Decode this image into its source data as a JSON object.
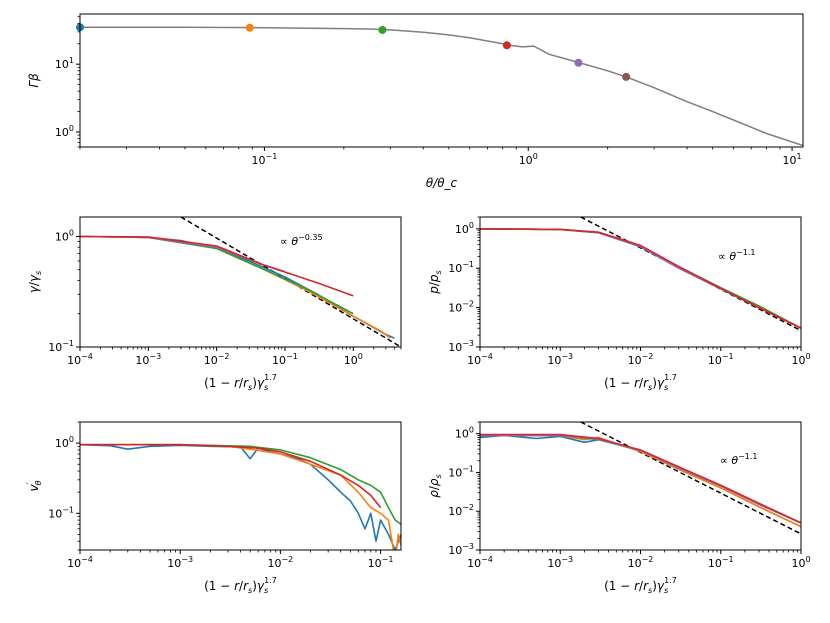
{
  "chart_data": [
    {
      "type": "line",
      "xscale": "log",
      "yscale": "log",
      "xlim": [
        0.02,
        11
      ],
      "ylim": [
        0.6,
        55
      ],
      "xlabel": "θ/θ_c",
      "ylabel": "Γβ",
      "xticks": [
        {
          "v": 0.1,
          "b": "10",
          "e": "−1"
        },
        {
          "v": 1,
          "b": "10",
          "e": "0"
        },
        {
          "v": 10,
          "b": "10",
          "e": "1"
        }
      ],
      "yticks": [
        {
          "v": 1,
          "b": "10",
          "e": "0"
        },
        {
          "v": 10,
          "b": "10",
          "e": "1"
        }
      ],
      "series": [
        {
          "color": "#7f7f7f",
          "x": [
            0.02,
            0.05,
            0.1,
            0.15,
            0.2,
            0.25,
            0.3,
            0.4,
            0.5,
            0.6,
            0.7,
            0.8,
            0.85,
            0.95,
            1.05,
            1.2,
            1.5,
            2,
            2.4,
            3,
            4,
            5,
            6,
            8,
            11
          ],
          "y": [
            35,
            35,
            34.5,
            34,
            33.5,
            33,
            32,
            29.5,
            27,
            24.5,
            22,
            20,
            19,
            18,
            18.5,
            14,
            11,
            8,
            6.3,
            4.5,
            2.8,
            2,
            1.5,
            0.95,
            0.63
          ]
        }
      ],
      "markers": [
        {
          "x": 0.02,
          "y": 35,
          "color": "#1f77b4"
        },
        {
          "x": 0.088,
          "y": 34.5,
          "color": "#ff7f0e"
        },
        {
          "x": 0.28,
          "y": 32,
          "color": "#2ca02c"
        },
        {
          "x": 0.83,
          "y": 19,
          "color": "#d62728"
        },
        {
          "x": 1.55,
          "y": 10.5,
          "color": "#9467bd"
        },
        {
          "x": 2.35,
          "y": 6.5,
          "color": "#8c564b"
        }
      ]
    },
    {
      "type": "line",
      "xscale": "log",
      "yscale": "log",
      "xlim": [
        0.0001,
        5
      ],
      "ylim": [
        0.1,
        1.5
      ],
      "xlabel_parts": [
        "(1 − ",
        "r",
        "/",
        "r",
        "s",
        ")",
        "γ",
        "s",
        "1.7"
      ],
      "ylabel_parts": [
        "γ",
        "/",
        "γ",
        "s"
      ],
      "annotation": {
        "pre": "∝ ",
        "sym": "θ",
        "exp": "−0.35"
      },
      "xticks": [
        {
          "v": 0.0001,
          "b": "10",
          "e": "−4"
        },
        {
          "v": 0.001,
          "b": "10",
          "e": "−3"
        },
        {
          "v": 0.01,
          "b": "10",
          "e": "−2"
        },
        {
          "v": 0.1,
          "b": "10",
          "e": "−1"
        },
        {
          "v": 1,
          "b": "10",
          "e": "0"
        }
      ],
      "yticks": [
        {
          "v": 0.1,
          "b": "10",
          "e": "−1"
        },
        {
          "v": 1,
          "b": "10",
          "e": "0"
        }
      ],
      "powerlaw": {
        "slope": -0.35,
        "x": [
          0.003,
          5
        ],
        "y": [
          1.5,
          0.1
        ]
      },
      "series": [
        {
          "color": "#1f77b4",
          "x": [
            0.0001,
            0.001,
            0.003,
            0.01,
            0.03,
            0.1,
            0.3,
            1,
            3,
            4
          ],
          "y": [
            1,
            0.98,
            0.92,
            0.78,
            0.6,
            0.43,
            0.3,
            0.19,
            0.13,
            0.12
          ]
        },
        {
          "color": "#ff7f0e",
          "x": [
            0.0001,
            0.001,
            0.01,
            0.05,
            0.2,
            1,
            2.5,
            3.5
          ],
          "y": [
            1,
            0.98,
            0.78,
            0.5,
            0.33,
            0.19,
            0.14,
            0.12
          ]
        },
        {
          "color": "#2ca02c",
          "x": [
            0.0001,
            0.001,
            0.01,
            0.05,
            0.2,
            1
          ],
          "y": [
            1,
            0.98,
            0.78,
            0.5,
            0.34,
            0.2
          ]
        },
        {
          "color": "#9467bd",
          "x": [
            0.0001,
            0.001,
            0.01,
            0.05,
            0.1
          ],
          "y": [
            1,
            0.98,
            0.8,
            0.55,
            0.48
          ]
        },
        {
          "color": "#d62728",
          "x": [
            0.0001,
            0.001,
            0.01,
            0.05,
            0.3,
            1
          ],
          "y": [
            1,
            0.99,
            0.82,
            0.55,
            0.38,
            0.29
          ]
        }
      ]
    },
    {
      "type": "line",
      "xscale": "log",
      "yscale": "log",
      "xlim": [
        0.0001,
        1
      ],
      "ylim": [
        0.001,
        2
      ],
      "xlabel_parts": [
        "(1 − ",
        "r",
        "/",
        "r",
        "s",
        ")",
        "γ",
        "s",
        "1.7"
      ],
      "ylabel_parts": [
        "p",
        "/",
        "p",
        "s"
      ],
      "annotation": {
        "pre": "∝ ",
        "sym": "θ",
        "exp": "−1.1"
      },
      "xticks": [
        {
          "v": 0.0001,
          "b": "10",
          "e": "−4"
        },
        {
          "v": 0.001,
          "b": "10",
          "e": "−3"
        },
        {
          "v": 0.01,
          "b": "10",
          "e": "−2"
        },
        {
          "v": 0.1,
          "b": "10",
          "e": "−1"
        },
        {
          "v": 1,
          "b": "10",
          "e": "0"
        }
      ],
      "yticks": [
        {
          "v": 0.001,
          "b": "10",
          "e": "−3"
        },
        {
          "v": 0.01,
          "b": "10",
          "e": "−2"
        },
        {
          "v": 0.1,
          "b": "10",
          "e": "−1"
        },
        {
          "v": 1,
          "b": "10",
          "e": "0"
        }
      ],
      "powerlaw": {
        "slope": -1.1,
        "x": [
          0.0018,
          1
        ],
        "y": [
          2,
          0.0026
        ]
      },
      "series": [
        {
          "color": "#1f77b4",
          "x": [
            0.0001,
            0.001,
            0.003,
            0.01,
            0.03,
            0.1,
            0.3,
            1
          ],
          "y": [
            1,
            0.97,
            0.8,
            0.35,
            0.1,
            0.03,
            0.01,
            0.003
          ]
        },
        {
          "color": "#ff7f0e",
          "x": [
            0.0001,
            0.001,
            0.003,
            0.01,
            0.03,
            0.1,
            0.3,
            1
          ],
          "y": [
            1,
            0.97,
            0.8,
            0.36,
            0.1,
            0.03,
            0.01,
            0.003
          ]
        },
        {
          "color": "#2ca02c",
          "x": [
            0.0001,
            0.001,
            0.003,
            0.01,
            0.03,
            0.1,
            0.3,
            1
          ],
          "y": [
            1,
            0.97,
            0.8,
            0.37,
            0.11,
            0.032,
            0.011,
            0.003
          ]
        },
        {
          "color": "#9467bd",
          "x": [
            0.0001,
            0.001,
            0.003,
            0.01,
            0.03,
            0.1,
            0.3,
            1
          ],
          "y": [
            1,
            0.97,
            0.8,
            0.36,
            0.1,
            0.03,
            0.01,
            0.003
          ]
        },
        {
          "color": "#d62728",
          "x": [
            0.0001,
            0.001,
            0.003,
            0.01,
            0.03,
            0.1,
            0.3,
            1
          ],
          "y": [
            1,
            0.97,
            0.82,
            0.38,
            0.11,
            0.031,
            0.01,
            0.003
          ]
        }
      ]
    },
    {
      "type": "line",
      "xscale": "log",
      "yscale": "log",
      "xlim": [
        0.0001,
        0.16
      ],
      "ylim": [
        0.03,
        2
      ],
      "xlabel_parts": [
        "(1 − ",
        "r",
        "/",
        "r",
        "s",
        ")",
        "γ",
        "s",
        "1.7"
      ],
      "ylabel_parts": [
        "v",
        "′",
        "θ"
      ],
      "xticks": [
        {
          "v": 0.0001,
          "b": "10",
          "e": "−4"
        },
        {
          "v": 0.001,
          "b": "10",
          "e": "−3"
        },
        {
          "v": 0.01,
          "b": "10",
          "e": "−2"
        },
        {
          "v": 0.1,
          "b": "10",
          "e": "−1"
        }
      ],
      "yticks": [
        {
          "v": 0.1,
          "b": "10",
          "e": "−1"
        },
        {
          "v": 1,
          "b": "10",
          "e": "0"
        }
      ],
      "series": [
        {
          "color": "#1f77b4",
          "x": [
            0.0001,
            0.0002,
            0.0003,
            0.0005,
            0.001,
            0.002,
            0.004,
            0.005,
            0.006,
            0.008,
            0.01,
            0.015,
            0.02,
            0.03,
            0.04,
            0.05,
            0.06,
            0.07,
            0.08,
            0.09,
            0.1,
            0.12,
            0.14,
            0.16
          ],
          "y": [
            0.95,
            0.92,
            0.82,
            0.9,
            0.93,
            0.9,
            0.88,
            0.6,
            0.85,
            0.75,
            0.7,
            0.6,
            0.5,
            0.3,
            0.2,
            0.15,
            0.1,
            0.06,
            0.1,
            0.04,
            0.08,
            0.05,
            0.03,
            0.05
          ]
        },
        {
          "color": "#ff7f0e",
          "x": [
            0.0001,
            0.001,
            0.003,
            0.005,
            0.01,
            0.02,
            0.04,
            0.06,
            0.08,
            0.1,
            0.12,
            0.13,
            0.14,
            0.15,
            0.16
          ],
          "y": [
            0.95,
            0.95,
            0.9,
            0.82,
            0.7,
            0.5,
            0.35,
            0.2,
            0.12,
            0.1,
            0.08,
            0.04,
            0.02,
            0.05,
            0.035
          ]
        },
        {
          "color": "#2ca02c",
          "x": [
            0.0001,
            0.001,
            0.005,
            0.01,
            0.02,
            0.04,
            0.06,
            0.08,
            0.1,
            0.12,
            0.14,
            0.16
          ],
          "y": [
            0.95,
            0.95,
            0.9,
            0.8,
            0.62,
            0.42,
            0.3,
            0.25,
            0.2,
            0.12,
            0.08,
            0.07
          ]
        },
        {
          "color": "#d62728",
          "x": [
            0.0001,
            0.001,
            0.003,
            0.006,
            0.01,
            0.02,
            0.04,
            0.06,
            0.08,
            0.1
          ],
          "y": [
            0.95,
            0.95,
            0.9,
            0.85,
            0.75,
            0.55,
            0.35,
            0.25,
            0.18,
            0.12
          ]
        }
      ]
    },
    {
      "type": "line",
      "xscale": "log",
      "yscale": "log",
      "xlim": [
        0.0001,
        1
      ],
      "ylim": [
        0.001,
        2
      ],
      "xlabel_parts": [
        "(1 − ",
        "r",
        "/",
        "r",
        "s",
        ")",
        "γ",
        "s",
        "1.7"
      ],
      "ylabel_parts": [
        "ρ",
        "/",
        "ρ",
        "s"
      ],
      "annotation": {
        "pre": "∝ ",
        "sym": "θ",
        "exp": "−1.1"
      },
      "xticks": [
        {
          "v": 0.0001,
          "b": "10",
          "e": "−4"
        },
        {
          "v": 0.001,
          "b": "10",
          "e": "−3"
        },
        {
          "v": 0.01,
          "b": "10",
          "e": "−2"
        },
        {
          "v": 0.1,
          "b": "10",
          "e": "−1"
        },
        {
          "v": 1,
          "b": "10",
          "e": "0"
        }
      ],
      "yticks": [
        {
          "v": 0.001,
          "b": "10",
          "e": "−3"
        },
        {
          "v": 0.01,
          "b": "10",
          "e": "−2"
        },
        {
          "v": 0.1,
          "b": "10",
          "e": "−1"
        },
        {
          "v": 1,
          "b": "10",
          "e": "0"
        }
      ],
      "powerlaw": {
        "slope": -1.1,
        "x": [
          0.0018,
          1
        ],
        "y": [
          2,
          0.0026
        ]
      },
      "series": [
        {
          "color": "#1f77b4",
          "x": [
            0.0001,
            0.0002,
            0.0005,
            0.001,
            0.002,
            0.003,
            0.005,
            0.01,
            0.03,
            0.1,
            0.3,
            1
          ],
          "y": [
            0.8,
            0.9,
            0.75,
            0.85,
            0.6,
            0.7,
            0.55,
            0.35,
            0.12,
            0.04,
            0.013,
            0.004
          ]
        },
        {
          "color": "#ff7f0e",
          "x": [
            0.0001,
            0.001,
            0.002,
            0.003,
            0.005,
            0.01,
            0.03,
            0.1,
            0.3,
            1
          ],
          "y": [
            0.9,
            0.9,
            0.7,
            0.8,
            0.55,
            0.35,
            0.12,
            0.04,
            0.013,
            0.004
          ]
        },
        {
          "color": "#2ca02c",
          "x": [
            0.0001,
            0.001,
            0.003,
            0.01,
            0.03,
            0.1,
            0.3,
            1
          ],
          "y": [
            0.9,
            0.9,
            0.7,
            0.37,
            0.13,
            0.045,
            0.015,
            0.005
          ]
        },
        {
          "color": "#9467bd",
          "x": [
            0.0001,
            0.001,
            0.003,
            0.01,
            0.03,
            0.1,
            0.3,
            1
          ],
          "y": [
            0.9,
            0.9,
            0.72,
            0.37,
            0.13,
            0.045,
            0.015,
            0.005
          ]
        },
        {
          "color": "#d62728",
          "x": [
            0.0001,
            0.001,
            0.003,
            0.01,
            0.03,
            0.1,
            0.3,
            1
          ],
          "y": [
            0.95,
            0.95,
            0.75,
            0.38,
            0.14,
            0.047,
            0.016,
            0.005
          ]
        }
      ]
    }
  ]
}
